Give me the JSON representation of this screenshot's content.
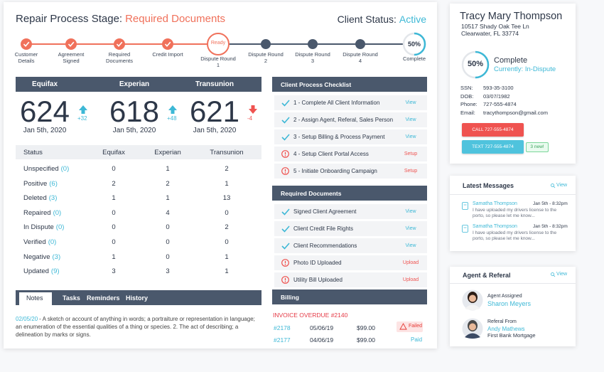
{
  "header": {
    "title": "Repair Process Stage:",
    "stage": "Required Documents",
    "status_label": "Client Status:",
    "status": "Active",
    "stage_color": "#f0715b",
    "status_color": "#3db8d6"
  },
  "steps": [
    {
      "label": "Customer Details",
      "color": "#f0715b",
      "checked": true
    },
    {
      "label": "Agreement Signed",
      "color": "#f0715b",
      "checked": true
    },
    {
      "label": "Required Documents",
      "color": "#f0715b",
      "checked": true
    },
    {
      "label": "Credit Import",
      "color": "#f0715b",
      "checked": true
    },
    {
      "label": "Dispute Round 1",
      "color": "#f0715b",
      "badge": "Ready"
    },
    {
      "label": "Dispute Round 2",
      "color": "#4a586c"
    },
    {
      "label": "Dispute Round 3",
      "color": "#4a586c"
    },
    {
      "label": "Dispute Round 4",
      "color": "#4a586c"
    },
    {
      "label": "Complete",
      "color": "#4a586c",
      "progress": {
        "value": 50,
        "label": "50%"
      },
      "progress_color": "#3db8d6"
    }
  ],
  "bureaus": [
    {
      "name": "Equifax",
      "score": 624,
      "date": "Jan 5th, 2020",
      "change": "+32",
      "color": "#3db8d6"
    },
    {
      "name": "Experian",
      "score": 618,
      "date": "Jan 5th, 2020",
      "change": "+48",
      "color": "#3db8d6"
    },
    {
      "name": "Transunion",
      "score": 621,
      "date": "Jan 5th, 2020",
      "change": "-4",
      "color": "#ef5350"
    }
  ],
  "status_table": {
    "columns": [
      "Status",
      "Equifax",
      "Experian",
      "Transunion"
    ],
    "rows": [
      {
        "label": "Unspecified",
        "count": "(0)",
        "values": [
          0,
          1,
          2
        ]
      },
      {
        "label": "Positive",
        "count": "(6)",
        "values": [
          2,
          2,
          1
        ]
      },
      {
        "label": "Deleted",
        "count": "(3)",
        "values": [
          1,
          1,
          13
        ]
      },
      {
        "label": "Repaired",
        "count": "(0)",
        "values": [
          0,
          4,
          0
        ]
      },
      {
        "label": "In Dispute",
        "count": "(0)",
        "values": [
          0,
          0,
          2
        ]
      },
      {
        "label": "Verified",
        "count": "(0)",
        "values": [
          0,
          0,
          0
        ]
      },
      {
        "label": "Negative",
        "count": "(3)",
        "values": [
          1,
          0,
          1
        ]
      },
      {
        "label": "Updated",
        "count": "(9)",
        "values": [
          3,
          3,
          1
        ]
      }
    ]
  },
  "notes": {
    "tabs": [
      "Notes",
      "Tasks",
      "Reminders",
      "History"
    ],
    "items": [
      {
        "date": "02/05/20",
        "text": "- A sketch or account of anything in words; a portraiture or representation in language; an enumeration of the essential qualities of a thing or species. 2. The act of describing; a delineation by marks or signs."
      }
    ]
  },
  "checklist": {
    "title": "Client Process Checklist",
    "items": [
      {
        "text": "1 - Complete All Client Information",
        "action": "View",
        "icon": "check",
        "color": "#3db8d6"
      },
      {
        "text": "2 - Assign Agent, Referal, Sales Person",
        "action": "View",
        "icon": "check",
        "color": "#3db8d6"
      },
      {
        "text": "3 - Setup Billing & Process Payment",
        "action": "View",
        "icon": "check",
        "color": "#3db8d6"
      },
      {
        "text": "4 - Setup Client Portal Access",
        "action": "Setup",
        "icon": "alert",
        "color": "#ef5350"
      },
      {
        "text": "5 - Initiate Onboarding Campaign",
        "action": "Setup",
        "icon": "alert",
        "color": "#ef5350"
      }
    ]
  },
  "documents": {
    "title": "Required Documents",
    "items": [
      {
        "text": "Signed Client Agreement",
        "action": "View",
        "icon": "check",
        "color": "#3db8d6"
      },
      {
        "text": "Client Credit File Rights",
        "action": "View",
        "icon": "check",
        "color": "#3db8d6"
      },
      {
        "text": "Client Recommendations",
        "action": "View",
        "icon": "check",
        "color": "#3db8d6"
      },
      {
        "text": "Photo ID Uploaded",
        "action": "Upload",
        "icon": "alert",
        "color": "#ef5350"
      },
      {
        "text": "Utility Bill Uploaded",
        "action": "Upload",
        "icon": "alert",
        "color": "#ef5350"
      }
    ]
  },
  "billing": {
    "title": "Billing",
    "alert": "INVOICE OVERDUE #2140",
    "rows": [
      {
        "invoice": "#2178",
        "date": "05/06/19",
        "amount": "$99.00",
        "status": "Failed",
        "color": "#e53935",
        "background": "#fde4e4"
      },
      {
        "invoice": "#2177",
        "date": "04/06/19",
        "amount": "$99.00",
        "status": "Paid",
        "color": "#3db8d6"
      }
    ]
  },
  "profile": {
    "name": "Tracy Mary Thompson",
    "address": [
      "10517 Shady Oak Tee Ln",
      "Clearwater, FL 33774"
    ],
    "progress": {
      "value": 50,
      "label": "50%"
    },
    "progress_color": "#3db8d6",
    "status": "Complete",
    "substatus": "Currently: In-Dispute",
    "fields": [
      {
        "label": "SSN:",
        "value": "593-35-3100"
      },
      {
        "label": "DOB:",
        "value": "03/07/1982"
      },
      {
        "label": "Phone:",
        "value": "727-555-4874"
      },
      {
        "label": "Email:",
        "value": "tracythompson@gmail.com"
      }
    ],
    "call": "CALL 727-555-4874",
    "text": "TEXT 727-555-4874",
    "badge": "3 new!"
  },
  "messages": {
    "title": "Latest Messages",
    "action": "View",
    "items": [
      {
        "name": "Samatha Thompson",
        "time": "Jan 5th - 8:32pm",
        "lines": [
          "I have uploaded my drivers license to the",
          "porto, so please let me know..."
        ]
      },
      {
        "name": "Samatha Thompson",
        "time": "Jan 5th - 8:32pm",
        "lines": [
          "I have uploaded my drivers license to the",
          "porto, so please let me know..."
        ]
      }
    ]
  },
  "agent": {
    "title": "Agent & Referal",
    "action": "View",
    "agent_label": "Agent Assigned",
    "agent": "Sharon Meyers",
    "referral_label": "Referal From",
    "referrer": "Andy Mathews",
    "company": "First Bank Mortgage"
  }
}
